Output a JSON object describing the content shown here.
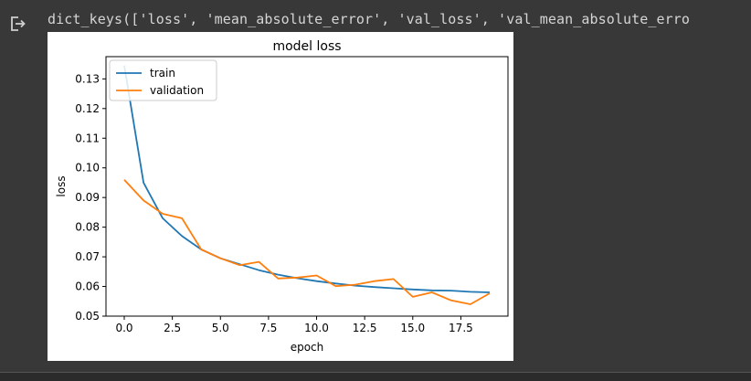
{
  "output": {
    "icon": "output-redirect-icon",
    "stdout_text": "dict_keys(['loss', 'mean_absolute_error', 'val_loss', 'val_mean_absolute_erro"
  },
  "chart_data": {
    "type": "line",
    "title": "model loss",
    "xlabel": "epoch",
    "ylabel": "loss",
    "xlim": [
      -0.95,
      19.95
    ],
    "ylim": [
      0.05,
      0.1375
    ],
    "xticks": [
      0.0,
      2.5,
      5.0,
      7.5,
      10.0,
      12.5,
      15.0,
      17.5
    ],
    "xtick_labels": [
      "0.0",
      "2.5",
      "5.0",
      "7.5",
      "10.0",
      "12.5",
      "15.0",
      "17.5"
    ],
    "yticks": [
      0.05,
      0.06,
      0.07,
      0.08,
      0.09,
      0.1,
      0.11,
      0.12,
      0.13
    ],
    "ytick_labels": [
      "0.05",
      "0.06",
      "0.07",
      "0.08",
      "0.09",
      "0.10",
      "0.11",
      "0.12",
      "0.13"
    ],
    "grid": false,
    "legend_position": "upper-left",
    "x": [
      0,
      1,
      2,
      3,
      4,
      5,
      6,
      7,
      8,
      9,
      10,
      11,
      12,
      13,
      14,
      15,
      16,
      17,
      18,
      19
    ],
    "series": [
      {
        "name": "train",
        "color": "#1f77b4",
        "values": [
          0.1345,
          0.095,
          0.083,
          0.077,
          0.0725,
          0.0695,
          0.0675,
          0.0655,
          0.064,
          0.0628,
          0.0618,
          0.061,
          0.0603,
          0.0598,
          0.0594,
          0.059,
          0.0587,
          0.0586,
          0.0582,
          0.058
        ]
      },
      {
        "name": "validation",
        "color": "#ff7f0e",
        "values": [
          0.096,
          0.089,
          0.0845,
          0.083,
          0.0725,
          0.0695,
          0.0672,
          0.0683,
          0.0627,
          0.063,
          0.0637,
          0.0601,
          0.0606,
          0.0618,
          0.0625,
          0.0565,
          0.058,
          0.0553,
          0.054,
          0.0577
        ]
      }
    ]
  }
}
